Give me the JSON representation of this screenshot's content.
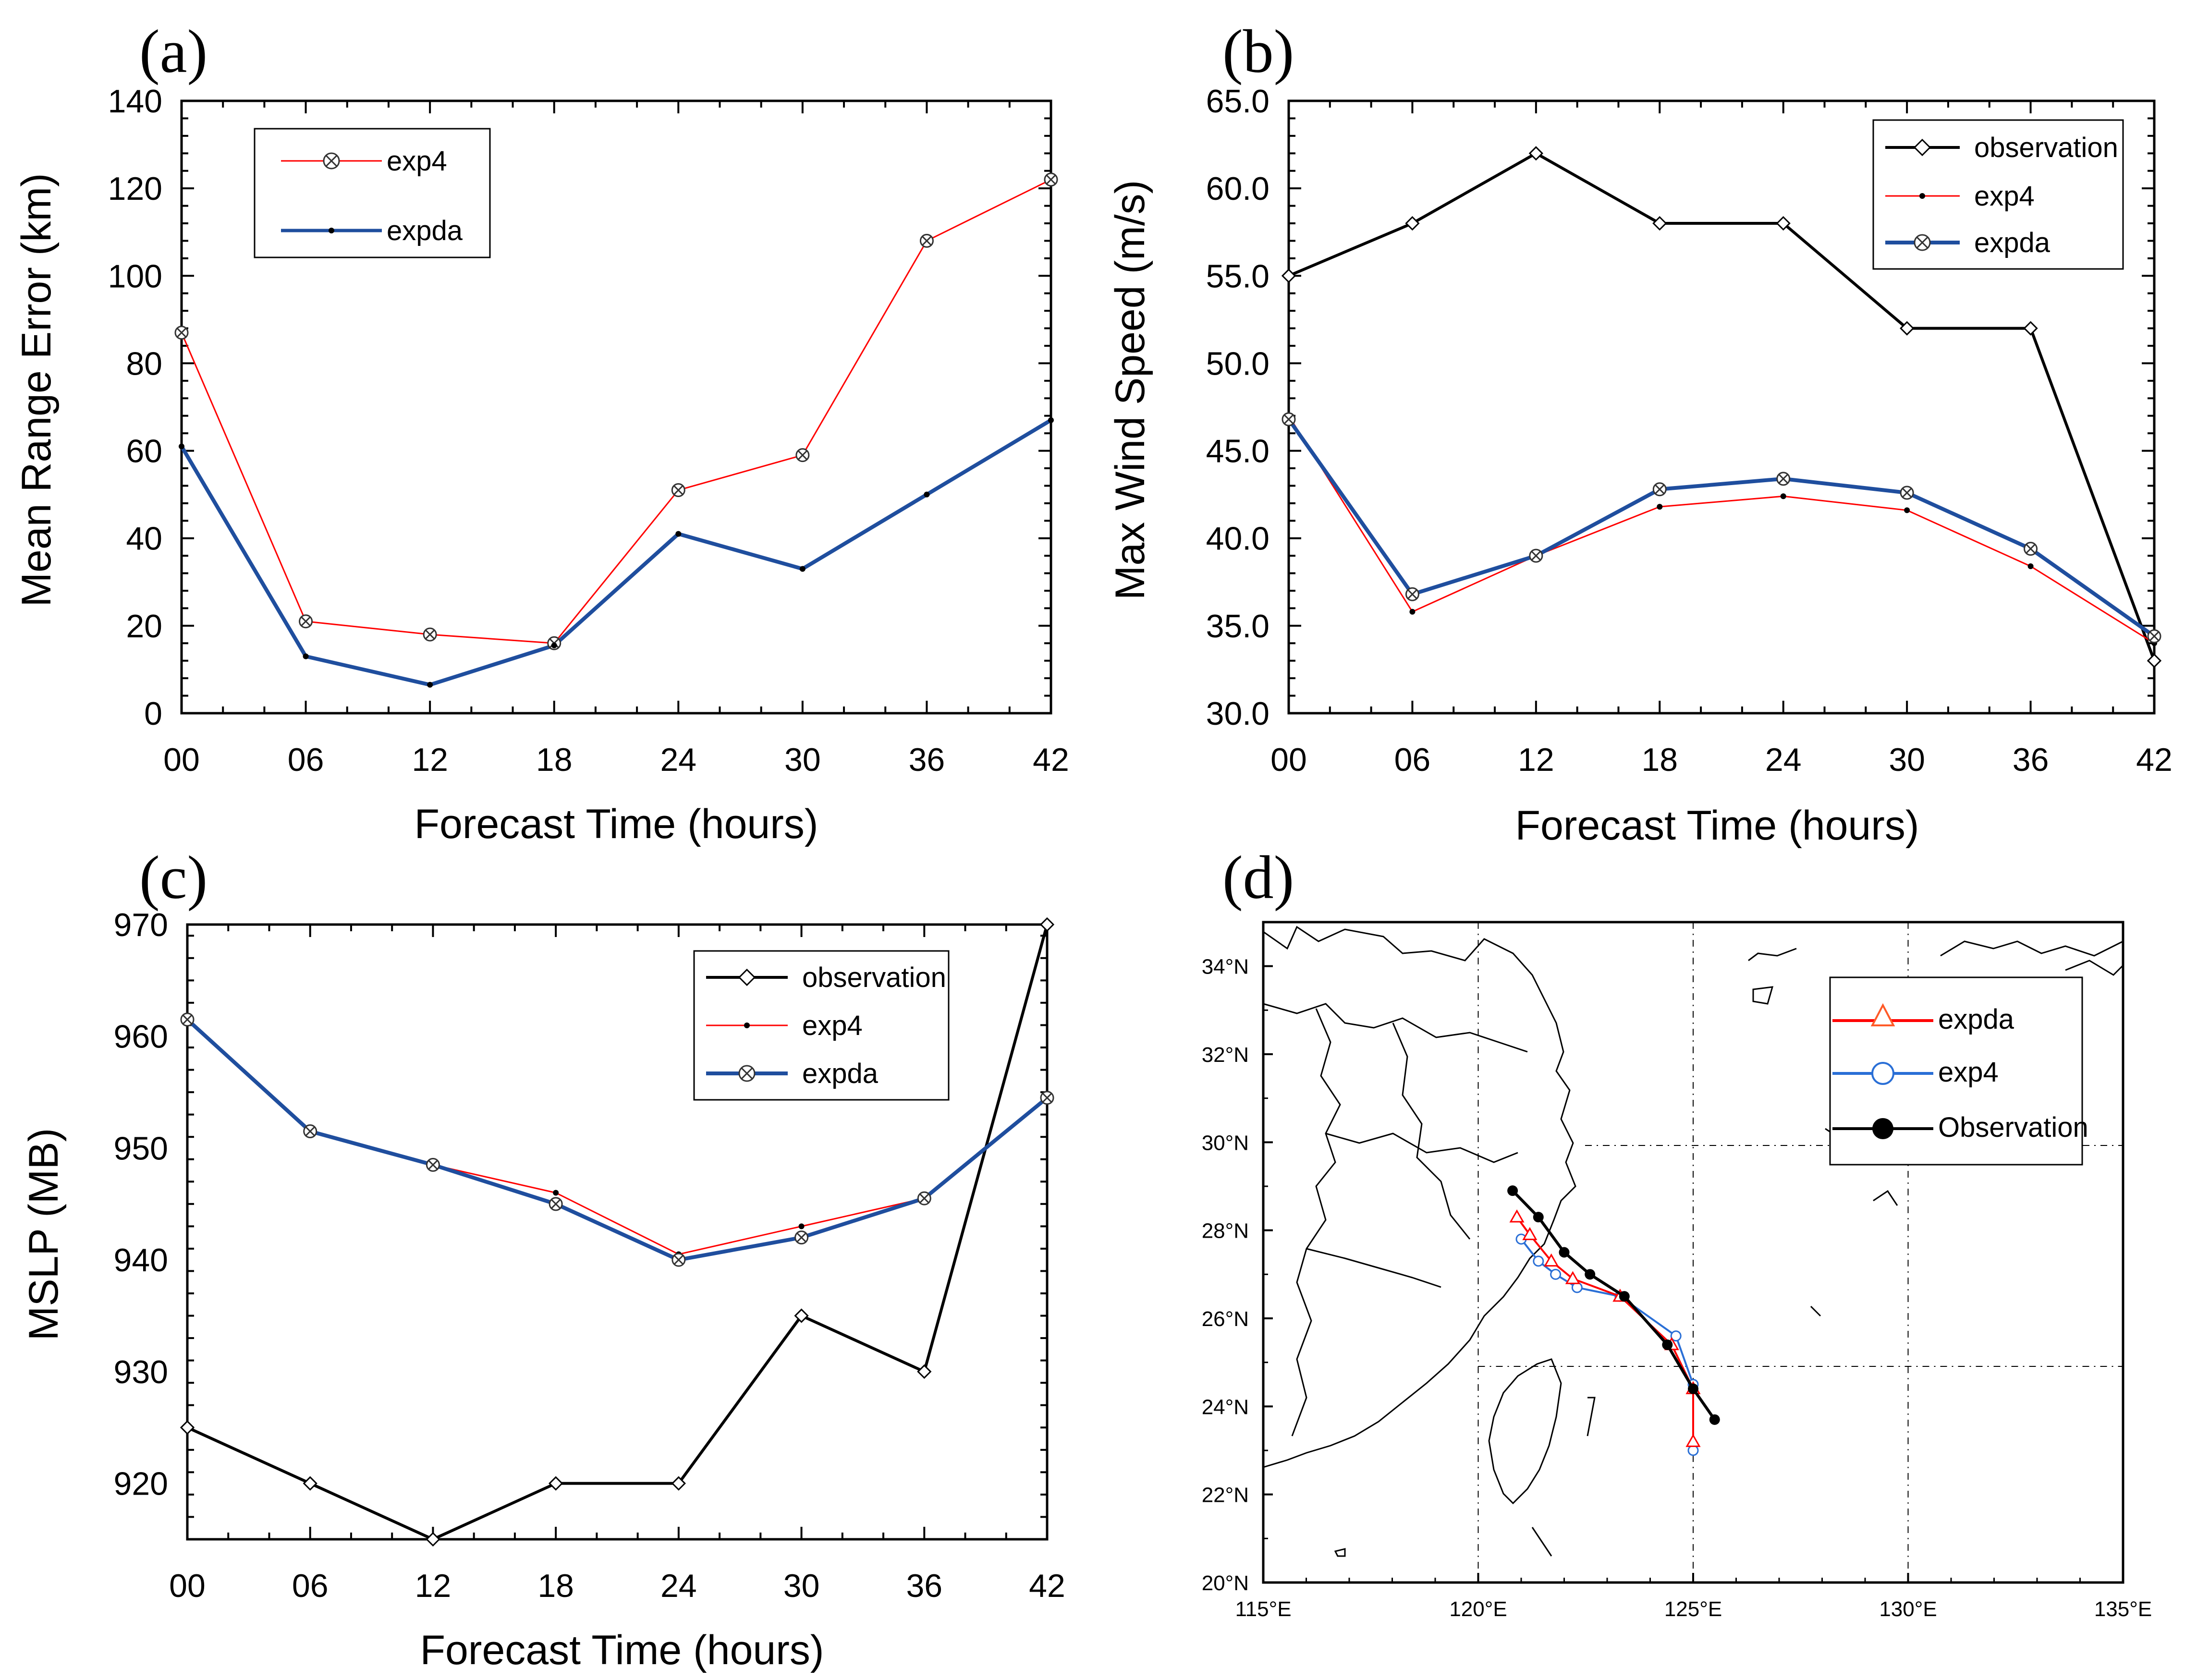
{
  "chart_data": [
    {
      "panel_label": "(a)",
      "type": "line",
      "xlabel": "Forecast Time (hours)",
      "ylabel": "Mean Range Error (km)",
      "x_ticks": [
        "00",
        "06",
        "12",
        "18",
        "24",
        "30",
        "36",
        "42"
      ],
      "x": [
        0,
        6,
        12,
        18,
        24,
        30,
        36,
        42
      ],
      "ylim": [
        0,
        140
      ],
      "y_ticks": [
        "0",
        "20",
        "40",
        "60",
        "80",
        "100",
        "120",
        "140"
      ],
      "legend": "top-left",
      "series": [
        {
          "name": "exp4",
          "color": "#ff0000",
          "marker": "circle-x",
          "values": [
            87,
            21,
            18,
            16,
            51,
            59,
            108,
            122
          ]
        },
        {
          "name": "expda",
          "color": "#1f4e9e",
          "marker": "dot",
          "values": [
            61,
            13,
            6.5,
            15.5,
            41,
            33,
            50,
            67
          ]
        }
      ]
    },
    {
      "panel_label": "(b)",
      "type": "line",
      "xlabel": "Forecast Time (hours)",
      "ylabel": "Max Wind Speed (m/s)",
      "x_ticks": [
        "00",
        "06",
        "12",
        "18",
        "24",
        "30",
        "36",
        "42"
      ],
      "x": [
        0,
        6,
        12,
        18,
        24,
        30,
        36,
        42
      ],
      "ylim": [
        30,
        65
      ],
      "y_ticks": [
        "30.0",
        "35.0",
        "40.0",
        "45.0",
        "50.0",
        "55.0",
        "60.0",
        "65.0"
      ],
      "legend": "top-right",
      "series": [
        {
          "name": "observation",
          "color": "#000000",
          "marker": "diamond",
          "values": [
            55,
            58,
            62,
            58,
            58,
            52,
            52,
            33
          ]
        },
        {
          "name": "exp4",
          "color": "#ff0000",
          "marker": "dot",
          "values": [
            47,
            35.8,
            39,
            41.8,
            42.4,
            41.6,
            38.4,
            34
          ]
        },
        {
          "name": "expda",
          "color": "#1f4e9e",
          "marker": "circle-x",
          "values": [
            46.8,
            36.8,
            39,
            42.8,
            43.4,
            42.6,
            39.4,
            34.4
          ]
        }
      ]
    },
    {
      "panel_label": "(c)",
      "type": "line",
      "xlabel": "Forecast Time (hours)",
      "ylabel": "MSLP (MB)",
      "x_ticks": [
        "00",
        "06",
        "12",
        "18",
        "24",
        "30",
        "36",
        "42"
      ],
      "x": [
        0,
        6,
        12,
        18,
        24,
        30,
        36,
        42
      ],
      "ylim": [
        915,
        970
      ],
      "y_ticks": [
        "920",
        "930",
        "940",
        "950",
        "960",
        "970"
      ],
      "legend": "top-right",
      "series": [
        {
          "name": "observation",
          "color": "#000000",
          "marker": "diamond",
          "values": [
            925,
            920,
            915,
            920,
            920,
            935,
            930,
            970
          ]
        },
        {
          "name": "exp4",
          "color": "#ff0000",
          "marker": "dot",
          "values": [
            961.5,
            951.5,
            948.5,
            946,
            940.5,
            943,
            945.5,
            954.5
          ]
        },
        {
          "name": "expda",
          "color": "#1f4e9e",
          "marker": "circle-x",
          "values": [
            961.5,
            951.5,
            948.5,
            945,
            940,
            942,
            945.5,
            954.5
          ]
        }
      ]
    },
    {
      "panel_label": "(d)",
      "type": "map-track",
      "lon_range": [
        115,
        135
      ],
      "lat_range": [
        20,
        35
      ],
      "lon_ticks": [
        "115°E",
        "120°E",
        "125°E",
        "130°E",
        "135°E"
      ],
      "lat_ticks": [
        "20°N",
        "22°N",
        "24°N",
        "26°N",
        "28°N",
        "30°N",
        "32°N",
        "34°N"
      ],
      "legend": "top-right",
      "series": [
        {
          "name": "expda",
          "color": "#ff0000",
          "marker": "triangle",
          "lon": [
            125.0,
            125.0,
            124.5,
            123.3,
            122.2,
            121.7,
            121.2,
            120.9
          ],
          "lat": [
            23.2,
            24.4,
            25.4,
            26.5,
            26.9,
            27.3,
            27.9,
            28.3
          ]
        },
        {
          "name": "exp4",
          "color": "#2a6fd6",
          "marker": "circle",
          "lon": [
            125.0,
            125.0,
            124.6,
            123.3,
            122.3,
            121.8,
            121.4,
            121.0
          ],
          "lat": [
            23.0,
            24.5,
            25.6,
            26.5,
            26.7,
            27.0,
            27.3,
            27.8
          ]
        },
        {
          "name": "Observation",
          "color": "#000000",
          "marker": "filled-circle",
          "lon": [
            125.5,
            125.0,
            124.4,
            123.4,
            122.6,
            122.0,
            121.4,
            120.8
          ],
          "lat": [
            23.7,
            24.4,
            25.4,
            26.5,
            27.0,
            27.5,
            28.3,
            28.9
          ]
        }
      ]
    }
  ]
}
